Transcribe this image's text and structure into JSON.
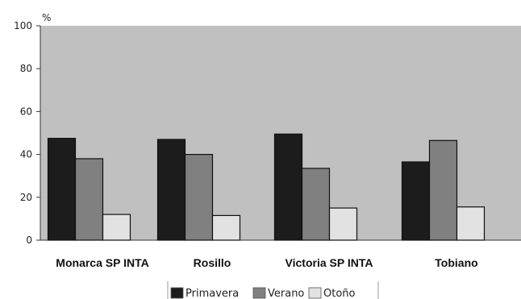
{
  "chart_data": {
    "type": "bar",
    "title": "",
    "ylabel": "%",
    "xlabel": "",
    "ylim": [
      0,
      100
    ],
    "yticks": [
      "0",
      "20",
      "40",
      "60",
      "80",
      "100"
    ],
    "categories": [
      "Monarca SP INTA",
      "Rosillo",
      "Victoria SP INTA",
      "Tobiano"
    ],
    "series": [
      {
        "name": "Primavera",
        "values": [
          47.5,
          47,
          49.5,
          36.5
        ],
        "color": "#1c1c1c"
      },
      {
        "name": "Verano",
        "values": [
          38,
          40,
          33.5,
          46.5
        ],
        "color": "#808080"
      },
      {
        "name": "Otoño",
        "values": [
          12,
          11.5,
          15,
          15.5
        ],
        "color": "#e2e2e2"
      }
    ],
    "plot_background": "#c0c0c0",
    "grid": false,
    "legend_position": "bottom"
  }
}
